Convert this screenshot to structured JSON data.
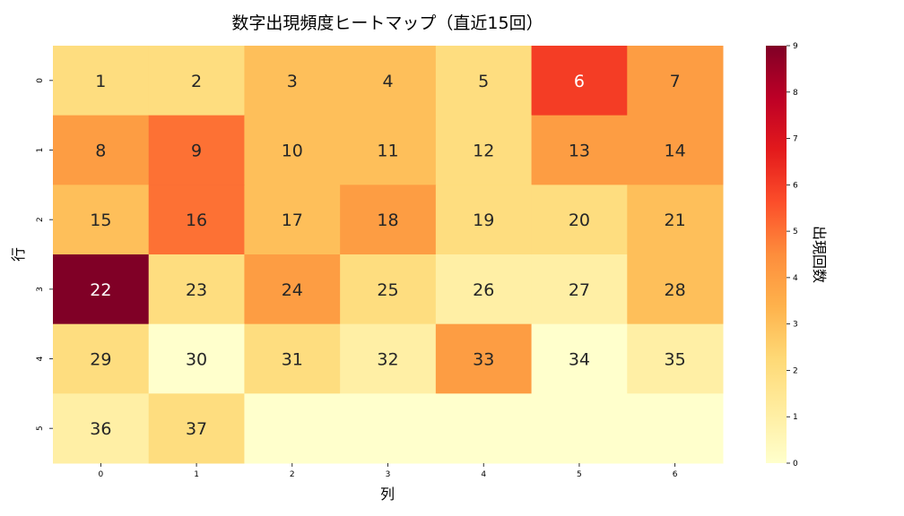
{
  "chart_data": {
    "type": "heatmap",
    "title": "数字出現頻度ヒートマップ（直近15回）",
    "xlabel": "列",
    "ylabel": "行",
    "colorbar_label": "出現回数",
    "x_ticks": [
      "0",
      "1",
      "2",
      "3",
      "4",
      "5",
      "6"
    ],
    "y_ticks": [
      "0",
      "1",
      "2",
      "3",
      "4",
      "5"
    ],
    "colorbar_ticks": [
      "0",
      "1",
      "2",
      "3",
      "4",
      "5",
      "6",
      "7",
      "8",
      "9"
    ],
    "vmin": 0,
    "vmax": 9,
    "colormap": "YlOrRd",
    "annotations": [
      [
        "1",
        "2",
        "3",
        "4",
        "5",
        "6",
        "7"
      ],
      [
        "8",
        "9",
        "10",
        "11",
        "12",
        "13",
        "14"
      ],
      [
        "15",
        "16",
        "17",
        "18",
        "19",
        "20",
        "21"
      ],
      [
        "22",
        "23",
        "24",
        "25",
        "26",
        "27",
        "28"
      ],
      [
        "29",
        "30",
        "31",
        "32",
        "33",
        "34",
        "35"
      ],
      [
        "36",
        "37",
        "",
        "",
        "",
        "",
        ""
      ]
    ],
    "values": [
      [
        2,
        2,
        3,
        3,
        2,
        6,
        4
      ],
      [
        4,
        5,
        3,
        3,
        2,
        4,
        4
      ],
      [
        3,
        5,
        3,
        4,
        2,
        2,
        3
      ],
      [
        9,
        2,
        4,
        2,
        1,
        1,
        3
      ],
      [
        2,
        0,
        2,
        1,
        4,
        0,
        1
      ],
      [
        1,
        2,
        0,
        0,
        0,
        0,
        0
      ]
    ]
  }
}
